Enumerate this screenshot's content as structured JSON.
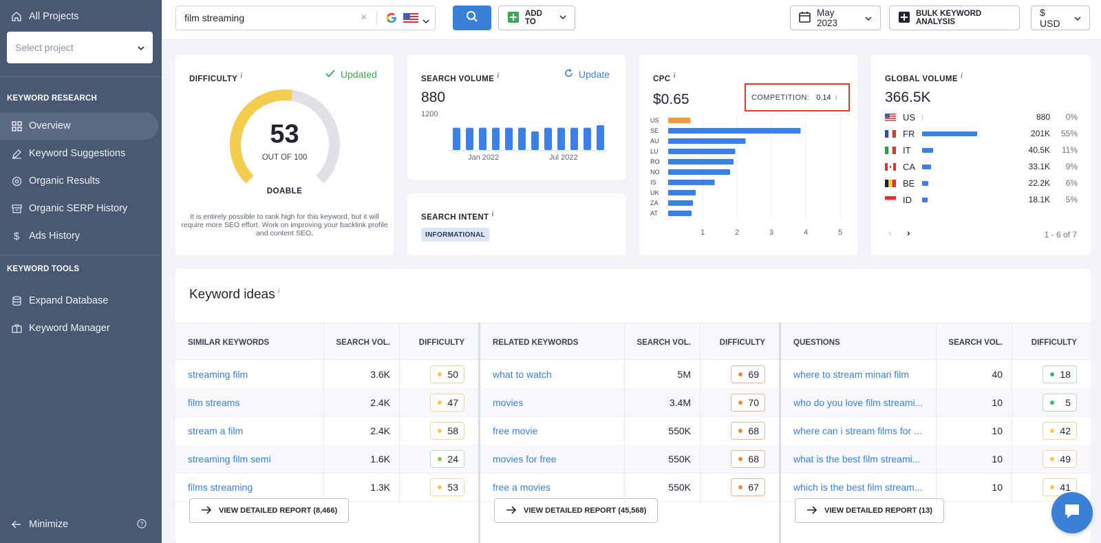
{
  "sidebar": {
    "all_projects": "All Projects",
    "select_project": "Select project",
    "section_research": "KEYWORD RESEARCH",
    "research_items": [
      {
        "label": "Overview"
      },
      {
        "label": "Keyword Suggestions"
      },
      {
        "label": "Organic Results"
      },
      {
        "label": "Organic SERP History"
      },
      {
        "label": "Ads History"
      }
    ],
    "section_tools": "KEYWORD TOOLS",
    "tool_items": [
      {
        "label": "Expand Database"
      },
      {
        "label": "Keyword Manager"
      }
    ],
    "minimize": "Minimize"
  },
  "topbar": {
    "search_value": "film streaming",
    "add_to": "ADD TO",
    "date": "May 2023",
    "bulk": "BULK KEYWORD ANALYSIS",
    "currency": "$ USD"
  },
  "difficulty": {
    "title": "DIFFICULTY",
    "status": "Updated",
    "value": "53",
    "out_of": "OUT OF 100",
    "level": "DOABLE",
    "description": "It is entirely possible to rank high for this keyword, but it will require more SEO effort. Work on improving your backlink profile and content SEO."
  },
  "search_volume": {
    "title": "SEARCH VOLUME",
    "action": "Update",
    "value": "880",
    "ymax": "1200",
    "xlabels": [
      "Jan 2022",
      "Jul 2022"
    ],
    "bars": [
      0.9,
      0.9,
      0.9,
      0.9,
      0.9,
      0.9,
      0.75,
      0.9,
      0.9,
      0.9,
      0.9,
      1.0
    ]
  },
  "search_intent": {
    "title": "SEARCH INTENT",
    "badge": "INFORMATIONAL"
  },
  "cpc": {
    "title": "CPC",
    "value": "$0.65",
    "competition_label": "COMPETITION:",
    "competition_value": "0.14",
    "countries": [
      {
        "code": "US",
        "value": 0.65,
        "highlight": true
      },
      {
        "code": "SE",
        "value": 3.85
      },
      {
        "code": "AU",
        "value": 2.25
      },
      {
        "code": "LU",
        "value": 1.95
      },
      {
        "code": "RO",
        "value": 1.9
      },
      {
        "code": "NO",
        "value": 1.8
      },
      {
        "code": "IS",
        "value": 1.35
      },
      {
        "code": "UK",
        "value": 0.8
      },
      {
        "code": "ZA",
        "value": 0.72
      },
      {
        "code": "AT",
        "value": 0.68
      }
    ],
    "axis": [
      "1",
      "2",
      "3",
      "4",
      "5"
    ]
  },
  "global_volume": {
    "title": "GLOBAL VOLUME",
    "value": "366.5K",
    "rows": [
      {
        "code": "US",
        "volume": "880",
        "pct": "0%",
        "share": 0.0
      },
      {
        "code": "FR",
        "volume": "201K",
        "pct": "55%",
        "share": 0.55
      },
      {
        "code": "IT",
        "volume": "40.5K",
        "pct": "11%",
        "share": 0.11
      },
      {
        "code": "CA",
        "volume": "33.1K",
        "pct": "9%",
        "share": 0.09
      },
      {
        "code": "BE",
        "volume": "22.2K",
        "pct": "6%",
        "share": 0.06
      },
      {
        "code": "ID",
        "volume": "18.1K",
        "pct": "5%",
        "share": 0.05
      }
    ],
    "pager": "1 - 6 of 7"
  },
  "keyword_ideas": {
    "title": "Keyword ideas",
    "columns": [
      {
        "header": "SIMILAR KEYWORDS",
        "vol_header": "SEARCH VOL.",
        "diff_header": "DIFFICULTY",
        "rows": [
          {
            "kw": "streaming film",
            "vol": "3.6K",
            "diff": "50",
            "color": "#f2c94c"
          },
          {
            "kw": "film streams",
            "vol": "2.4K",
            "diff": "47",
            "color": "#f2c94c"
          },
          {
            "kw": "stream a film",
            "vol": "2.4K",
            "diff": "58",
            "color": "#f2c94c"
          },
          {
            "kw": "streaming film semi",
            "vol": "1.6K",
            "diff": "24",
            "color": "#8bc34a"
          },
          {
            "kw": "films streaming",
            "vol": "1.3K",
            "diff": "53",
            "color": "#f2c94c"
          }
        ],
        "report": "VIEW DETAILED REPORT (8,466)"
      },
      {
        "header": "RELATED KEYWORDS",
        "vol_header": "SEARCH VOL.",
        "diff_header": "DIFFICULTY",
        "rows": [
          {
            "kw": "what to watch",
            "vol": "5M",
            "diff": "69",
            "color": "#f08a3c"
          },
          {
            "kw": "movies",
            "vol": "3.4M",
            "diff": "70",
            "color": "#f08a3c"
          },
          {
            "kw": "free movie",
            "vol": "550K",
            "diff": "68",
            "color": "#f08a3c"
          },
          {
            "kw": "movies for free",
            "vol": "550K",
            "diff": "68",
            "color": "#f08a3c"
          },
          {
            "kw": "free a movies",
            "vol": "550K",
            "diff": "67",
            "color": "#f08a3c"
          }
        ],
        "report": "VIEW DETAILED REPORT (45,568)"
      },
      {
        "header": "QUESTIONS",
        "vol_header": "SEARCH VOL.",
        "diff_header": "DIFFICULTY",
        "rows": [
          {
            "kw": "where to stream minari film",
            "vol": "40",
            "diff": "18",
            "color": "#4caf7a"
          },
          {
            "kw": "who do you love film streami...",
            "vol": "10",
            "diff": "5",
            "color": "#4caf7a"
          },
          {
            "kw": "where can i stream films for ...",
            "vol": "10",
            "diff": "42",
            "color": "#f2c94c"
          },
          {
            "kw": "what is the best film streami...",
            "vol": "10",
            "diff": "49",
            "color": "#f2c94c"
          },
          {
            "kw": "which is the best film stream...",
            "vol": "10",
            "diff": "41",
            "color": "#f2c94c"
          }
        ],
        "report": "VIEW DETAILED REPORT (13)"
      }
    ]
  }
}
